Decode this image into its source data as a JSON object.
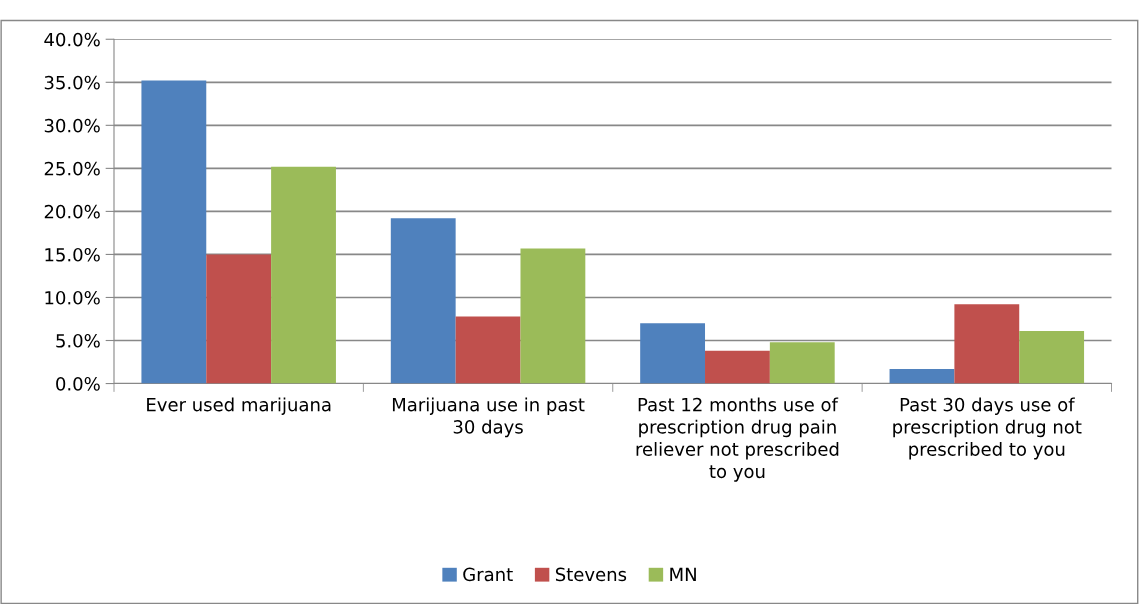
{
  "chart_data": {
    "type": "bar",
    "categories": [
      "Ever used marijuana",
      "Marijuana use in past\n30 days",
      "Past 12 months use of\nprescription drug pain\nreliever not prescribed\nto you",
      "Past 30 days use of\nprescription drug not\nprescribed to you"
    ],
    "series": [
      {
        "name": "Grant",
        "color": "#4f81bd",
        "values": [
          35.2,
          19.2,
          7.0,
          1.7
        ]
      },
      {
        "name": "Stevens",
        "color": "#c0504d",
        "values": [
          15.0,
          7.8,
          3.8,
          9.2
        ]
      },
      {
        "name": "MN",
        "color": "#9bbb59",
        "values": [
          25.2,
          15.7,
          4.8,
          6.1
        ]
      }
    ],
    "ylim": [
      0,
      40
    ],
    "yticks": [
      {
        "value": 0,
        "label": "0.0%"
      },
      {
        "value": 5,
        "label": "5.0%"
      },
      {
        "value": 10,
        "label": "10.0%"
      },
      {
        "value": 15,
        "label": "15.0%"
      },
      {
        "value": 20,
        "label": "20.0%"
      },
      {
        "value": 25,
        "label": "25.0%"
      },
      {
        "value": 30,
        "label": "30.0%"
      },
      {
        "value": 35,
        "label": "35.0%"
      },
      {
        "value": 40,
        "label": "40.0%"
      }
    ],
    "grid": "y",
    "legend": "bottom"
  }
}
